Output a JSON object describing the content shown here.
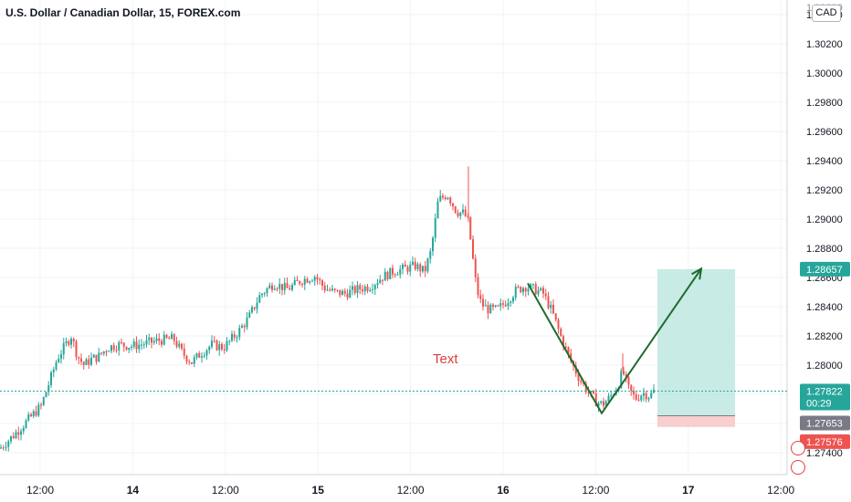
{
  "title": "U.S. Dollar / Canadian Dollar, 15, FOREX.com",
  "currency_button": "CAD",
  "annotation_text": "Text",
  "colors": {
    "up": "#26a69a",
    "down": "#ef5350",
    "last_price_line": "#26a69a",
    "target_zone": "#b6e4dc",
    "stop_zone": "#f8c5c5",
    "path": "#1e6b2e",
    "target_tag": "#26a69a",
    "entry_tag": "#787b86",
    "stop_tag": "#ef5350"
  },
  "chart_data": {
    "type": "candlestick",
    "ylim": [
      1.2725,
      1.305
    ],
    "yticks": [
      "1.30400",
      "1.30200",
      "1.30000",
      "1.29800",
      "1.29600",
      "1.29400",
      "1.29200",
      "1.29000",
      "1.28800",
      "1.28600",
      "1.28400",
      "1.28200",
      "1.28000",
      "1.27800",
      "1.27600",
      "1.27400"
    ],
    "top_tick_partial": "1.30600",
    "xticks": [
      {
        "label": "12:00",
        "bold": false
      },
      {
        "label": "14",
        "bold": true
      },
      {
        "label": "12:00",
        "bold": false
      },
      {
        "label": "15",
        "bold": true
      },
      {
        "label": "12:00",
        "bold": false
      },
      {
        "label": "16",
        "bold": true
      },
      {
        "label": "12:00",
        "bold": false
      },
      {
        "label": "17",
        "bold": true
      },
      {
        "label": "12:00",
        "bold": false
      }
    ],
    "price_path": [
      [
        0,
        1.2743
      ],
      [
        15,
        1.2752
      ],
      [
        30,
        1.2762
      ],
      [
        45,
        1.2772
      ],
      [
        55,
        1.279
      ],
      [
        63,
        1.2805
      ],
      [
        70,
        1.2812
      ],
      [
        78,
        1.282
      ],
      [
        85,
        1.2806
      ],
      [
        92,
        1.28
      ],
      [
        100,
        1.2804
      ],
      [
        108,
        1.2806
      ],
      [
        118,
        1.2812
      ],
      [
        130,
        1.2814
      ],
      [
        145,
        1.2813
      ],
      [
        160,
        1.2815
      ],
      [
        175,
        1.2817
      ],
      [
        190,
        1.2818
      ],
      [
        200,
        1.2808
      ],
      [
        210,
        1.2802
      ],
      [
        220,
        1.2808
      ],
      [
        232,
        1.2814
      ],
      [
        245,
        1.2812
      ],
      [
        260,
        1.2822
      ],
      [
        272,
        1.2832
      ],
      [
        285,
        1.2848
      ],
      [
        300,
        1.2856
      ],
      [
        315,
        1.2852
      ],
      [
        330,
        1.2858
      ],
      [
        345,
        1.2861
      ],
      [
        355,
        1.2853
      ],
      [
        365,
        1.285
      ],
      [
        378,
        1.2849
      ],
      [
        392,
        1.2852
      ],
      [
        405,
        1.2854
      ],
      [
        418,
        1.286
      ],
      [
        430,
        1.2864
      ],
      [
        443,
        1.2866
      ],
      [
        455,
        1.2868
      ],
      [
        465,
        1.2864
      ],
      [
        472,
        1.2878
      ],
      [
        480,
        1.2913
      ],
      [
        490,
        1.2917
      ],
      [
        500,
        1.2905
      ],
      [
        508,
        1.2904
      ],
      [
        513,
        1.2898
      ],
      [
        518,
        1.2872
      ],
      [
        522,
        1.2852
      ],
      [
        527,
        1.2842
      ],
      [
        535,
        1.2838
      ],
      [
        545,
        1.2838
      ],
      [
        555,
        1.2844
      ],
      [
        565,
        1.2851
      ],
      [
        575,
        1.2854
      ],
      [
        585,
        1.2852
      ],
      [
        595,
        1.2849
      ],
      [
        605,
        1.2836
      ],
      [
        615,
        1.2818
      ],
      [
        625,
        1.2803
      ],
      [
        635,
        1.279
      ],
      [
        645,
        1.2781
      ],
      [
        653,
        1.2775
      ],
      [
        660,
        1.2773
      ],
      [
        668,
        1.2778
      ],
      [
        676,
        1.2785
      ],
      [
        682,
        1.2796
      ],
      [
        688,
        1.2784
      ],
      [
        696,
        1.2777
      ],
      [
        704,
        1.2781
      ],
      [
        712,
        1.2779
      ],
      [
        716,
        1.2782
      ]
    ],
    "wick_spikes": [
      {
        "x": 513,
        "high": 1.2936
      },
      {
        "x": 682,
        "high": 1.2808
      }
    ],
    "last_price": {
      "value": "1.27822",
      "countdown": "00:29"
    },
    "position": {
      "entry": "1.27653",
      "target": "1.28657",
      "stop": "1.27576",
      "x_start": 720,
      "x_end": 805
    },
    "projection_path": [
      {
        "x": 578,
        "price": 1.2856
      },
      {
        "x": 659,
        "price": 1.2767
      },
      {
        "x": 768,
        "price": 1.2866
      }
    ]
  }
}
